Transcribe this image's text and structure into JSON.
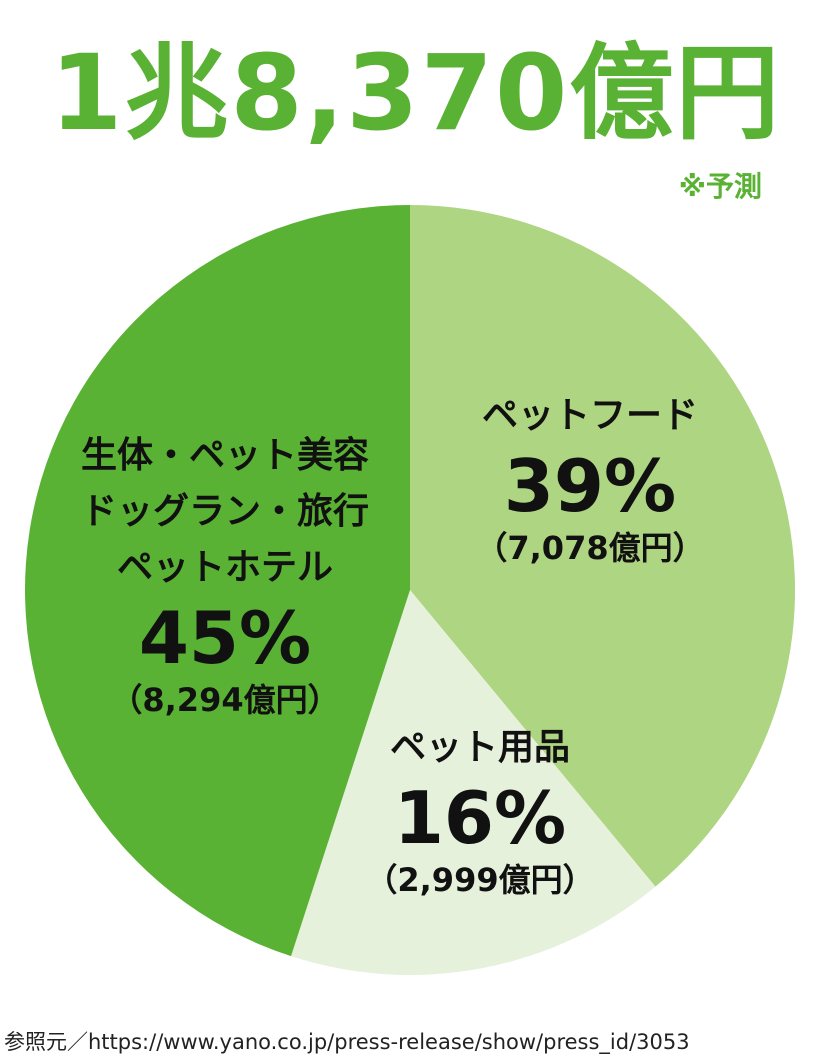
{
  "chart_data": {
    "type": "pie",
    "title": "1兆8,370億円",
    "note": "※予測",
    "categories": [
      "ペットフード",
      "ペット用品",
      "生体・ペット美容\nドッグラン・旅行\nペットホテル"
    ],
    "values": [
      39,
      16,
      45
    ],
    "value_labels": [
      "39%",
      "16%",
      "45%"
    ],
    "amount_labels": [
      "（7,078億円）",
      "（2,999億円）",
      "（8,294億円）"
    ],
    "colors": [
      "#aed581",
      "#e6f1dc",
      "#5ab234"
    ],
    "title_color": "#5ab234",
    "source": "参照元／https://www.yano.co.jp/press-release/show/press_id/3053"
  }
}
